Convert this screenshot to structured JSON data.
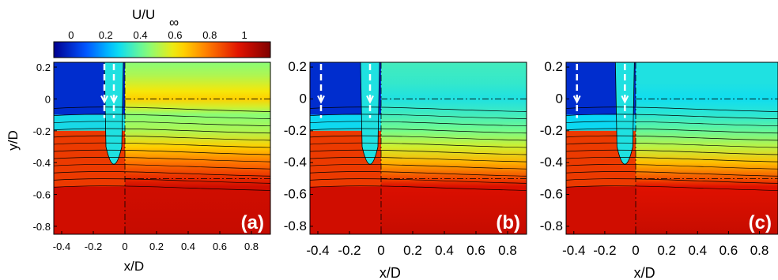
{
  "colorbar": {
    "label_main": "U/U",
    "label_sub": "∞",
    "ticks": [
      "0",
      "0.2",
      "0.4",
      "0.6",
      "0.8",
      "1"
    ],
    "tick_values": [
      0,
      0.2,
      0.4,
      0.6,
      0.8,
      1
    ],
    "range": [
      -0.1,
      1.15
    ]
  },
  "colors": {
    "deep_blue": "#00008f",
    "blue": "#0050ff",
    "cyan": "#00d8ff",
    "green": "#80ff80",
    "yellow": "#ffe600",
    "orange": "#ff7800",
    "red": "#e01000",
    "dark_red": "#7f0000"
  },
  "chart_data": [
    {
      "type": "heatmap",
      "panel_label": "(a)",
      "xlabel": "x/D",
      "ylabel": "y/D",
      "xlim": [
        -0.45,
        0.92
      ],
      "ylim": [
        -0.85,
        0.23
      ],
      "xticks": [
        -0.4,
        -0.2,
        0,
        0.2,
        0.4,
        0.6,
        0.8
      ],
      "xtick_labels": [
        "-0.4",
        "-0.2",
        "0",
        "0.2",
        "0.4",
        "0.6",
        "0.8"
      ],
      "yticks": [
        0.2,
        0,
        -0.2,
        -0.4,
        -0.6,
        -0.8
      ],
      "ytick_labels": [
        "0.2",
        "0",
        "-0.2",
        "-0.4",
        "-0.6",
        "-0.8"
      ],
      "cavity_x_start": -0.45,
      "profile": [
        {
          "y": 0.23,
          "u": 0.45
        },
        {
          "y": 0.15,
          "u": 0.5
        },
        {
          "y": 0.05,
          "u": 0.6
        },
        {
          "y": 0.0,
          "u": 0.65
        },
        {
          "y": -0.05,
          "u": 0.55
        },
        {
          "y": -0.1,
          "u": 0.45
        },
        {
          "y": -0.2,
          "u": 0.5
        },
        {
          "y": -0.3,
          "u": 0.65
        },
        {
          "y": -0.4,
          "u": 0.8
        },
        {
          "y": -0.5,
          "u": 0.93
        },
        {
          "y": -0.55,
          "u": 1.0
        },
        {
          "y": -0.85,
          "u": 1.02
        }
      ]
    },
    {
      "type": "heatmap",
      "panel_label": "(b)",
      "xlabel": "x/D",
      "ylabel": "",
      "xlim": [
        -0.45,
        0.92
      ],
      "ylim": [
        -0.85,
        0.23
      ],
      "xticks": [
        -0.4,
        -0.2,
        0,
        0.2,
        0.4,
        0.6,
        0.8
      ],
      "xtick_labels": [
        "-0.4",
        "-0.2",
        "0",
        "0.2",
        "0.4",
        "0.6",
        "0.8"
      ],
      "yticks": [
        0.2,
        0,
        -0.2,
        -0.4,
        -0.6,
        -0.8
      ],
      "ytick_labels": [
        "0.2",
        "0",
        "-0.2",
        "-0.4",
        "-0.6",
        "-0.8"
      ],
      "cavity_x_start": -0.45,
      "profile": [
        {
          "y": 0.23,
          "u": 0.35
        },
        {
          "y": 0.1,
          "u": 0.33
        },
        {
          "y": 0.0,
          "u": 0.3
        },
        {
          "y": -0.1,
          "u": 0.35
        },
        {
          "y": -0.2,
          "u": 0.42
        },
        {
          "y": -0.3,
          "u": 0.55
        },
        {
          "y": -0.4,
          "u": 0.7
        },
        {
          "y": -0.5,
          "u": 0.88
        },
        {
          "y": -0.55,
          "u": 0.98
        },
        {
          "y": -0.85,
          "u": 1.02
        }
      ]
    },
    {
      "type": "heatmap",
      "panel_label": "(c)",
      "xlabel": "x/D",
      "ylabel": "",
      "xlim": [
        -0.45,
        0.92
      ],
      "ylim": [
        -0.85,
        0.23
      ],
      "xticks": [
        -0.4,
        -0.2,
        0,
        0.2,
        0.4,
        0.6,
        0.8
      ],
      "xtick_labels": [
        "-0.4",
        "-0.2",
        "0",
        "0.2",
        "0.4",
        "0.6",
        "0.8"
      ],
      "yticks": [
        0.2,
        0,
        -0.2,
        -0.4,
        -0.6,
        -0.8
      ],
      "ytick_labels": [
        "0.2",
        "0",
        "-0.2",
        "-0.4",
        "-0.6",
        "-0.8"
      ],
      "cavity_x_start": -0.45,
      "profile": [
        {
          "y": 0.23,
          "u": 0.3
        },
        {
          "y": 0.1,
          "u": 0.3
        },
        {
          "y": 0.0,
          "u": 0.28
        },
        {
          "y": -0.1,
          "u": 0.32
        },
        {
          "y": -0.2,
          "u": 0.4
        },
        {
          "y": -0.3,
          "u": 0.52
        },
        {
          "y": -0.4,
          "u": 0.68
        },
        {
          "y": -0.5,
          "u": 0.86
        },
        {
          "y": -0.55,
          "u": 0.97
        },
        {
          "y": -0.85,
          "u": 1.02
        }
      ]
    }
  ]
}
